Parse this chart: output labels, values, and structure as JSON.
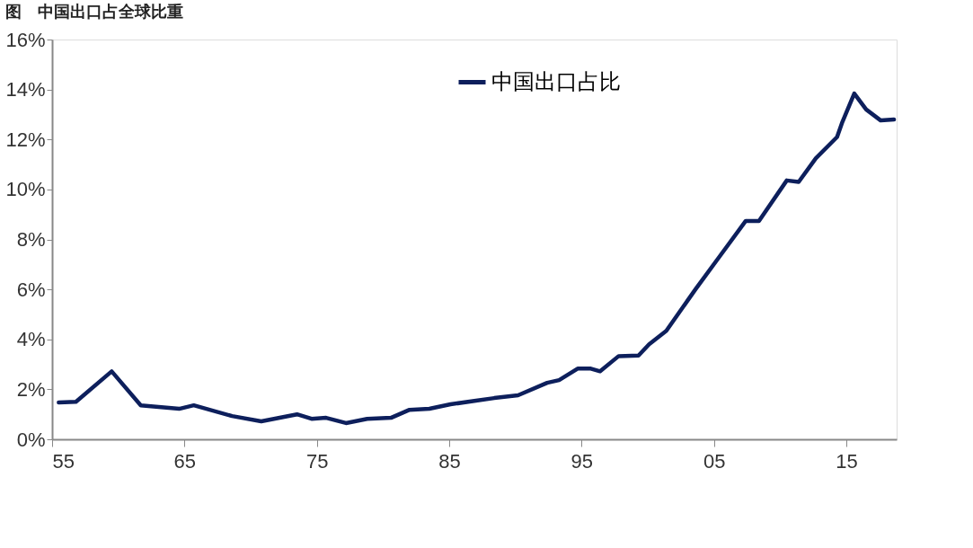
{
  "chart_data": {
    "type": "line",
    "title": "图　中国出口占全球比重",
    "x": [
      1955.5,
      1956.8,
      1959.5,
      1961.7,
      1964.6,
      1965.7,
      1968.6,
      1970.8,
      1973.5,
      1974.6,
      1975.7,
      1977.2,
      1978.8,
      1980.6,
      1982.0,
      1983.5,
      1985.1,
      1986.9,
      1988.4,
      1990.2,
      1992.4,
      1993.3,
      1994.7,
      1995.7,
      1996.4,
      1997.8,
      1999.3,
      2000.1,
      2001.4,
      2003.6,
      2005.4,
      2007.4,
      2008.4,
      2010.5,
      2011.4,
      2012.7,
      2014.3,
      2014.7,
      2015.6,
      2016.5,
      2017.6,
      2018.6
    ],
    "series": [
      {
        "name": "中国出口占比",
        "color": "#0d1f5c",
        "values": [
          1.47,
          1.5,
          2.72,
          1.36,
          1.22,
          1.36,
          0.93,
          0.72,
          1.0,
          0.82,
          0.86,
          0.65,
          0.82,
          0.86,
          1.18,
          1.22,
          1.4,
          1.54,
          1.65,
          1.76,
          2.26,
          2.37,
          2.83,
          2.83,
          2.72,
          3.33,
          3.35,
          3.8,
          4.34,
          6.0,
          7.3,
          8.74,
          8.74,
          10.36,
          10.3,
          11.25,
          12.1,
          12.7,
          13.84,
          13.2,
          12.76,
          12.8
        ]
      }
    ],
    "xlim": [
      1955,
      2018.8
    ],
    "xticks": [
      {
        "value": 1955,
        "label": "55"
      },
      {
        "value": 1965,
        "label": "65"
      },
      {
        "value": 1975,
        "label": "75"
      },
      {
        "value": 1985,
        "label": "85"
      },
      {
        "value": 1995,
        "label": "95"
      },
      {
        "value": 2005,
        "label": "05"
      },
      {
        "value": 2015,
        "label": "15"
      }
    ],
    "ylim": [
      0,
      16
    ],
    "yticks": [
      {
        "value": 0,
        "label": "0%"
      },
      {
        "value": 2,
        "label": "2%"
      },
      {
        "value": 4,
        "label": "4%"
      },
      {
        "value": 6,
        "label": "6%"
      },
      {
        "value": 8,
        "label": "8%"
      },
      {
        "value": 10,
        "label": "10%"
      },
      {
        "value": 12,
        "label": "12%"
      },
      {
        "value": 14,
        "label": "14%"
      },
      {
        "value": 16,
        "label": "16%"
      }
    ],
    "grid": false,
    "legend": "top right",
    "marker": "none",
    "line_style": "solid"
  }
}
